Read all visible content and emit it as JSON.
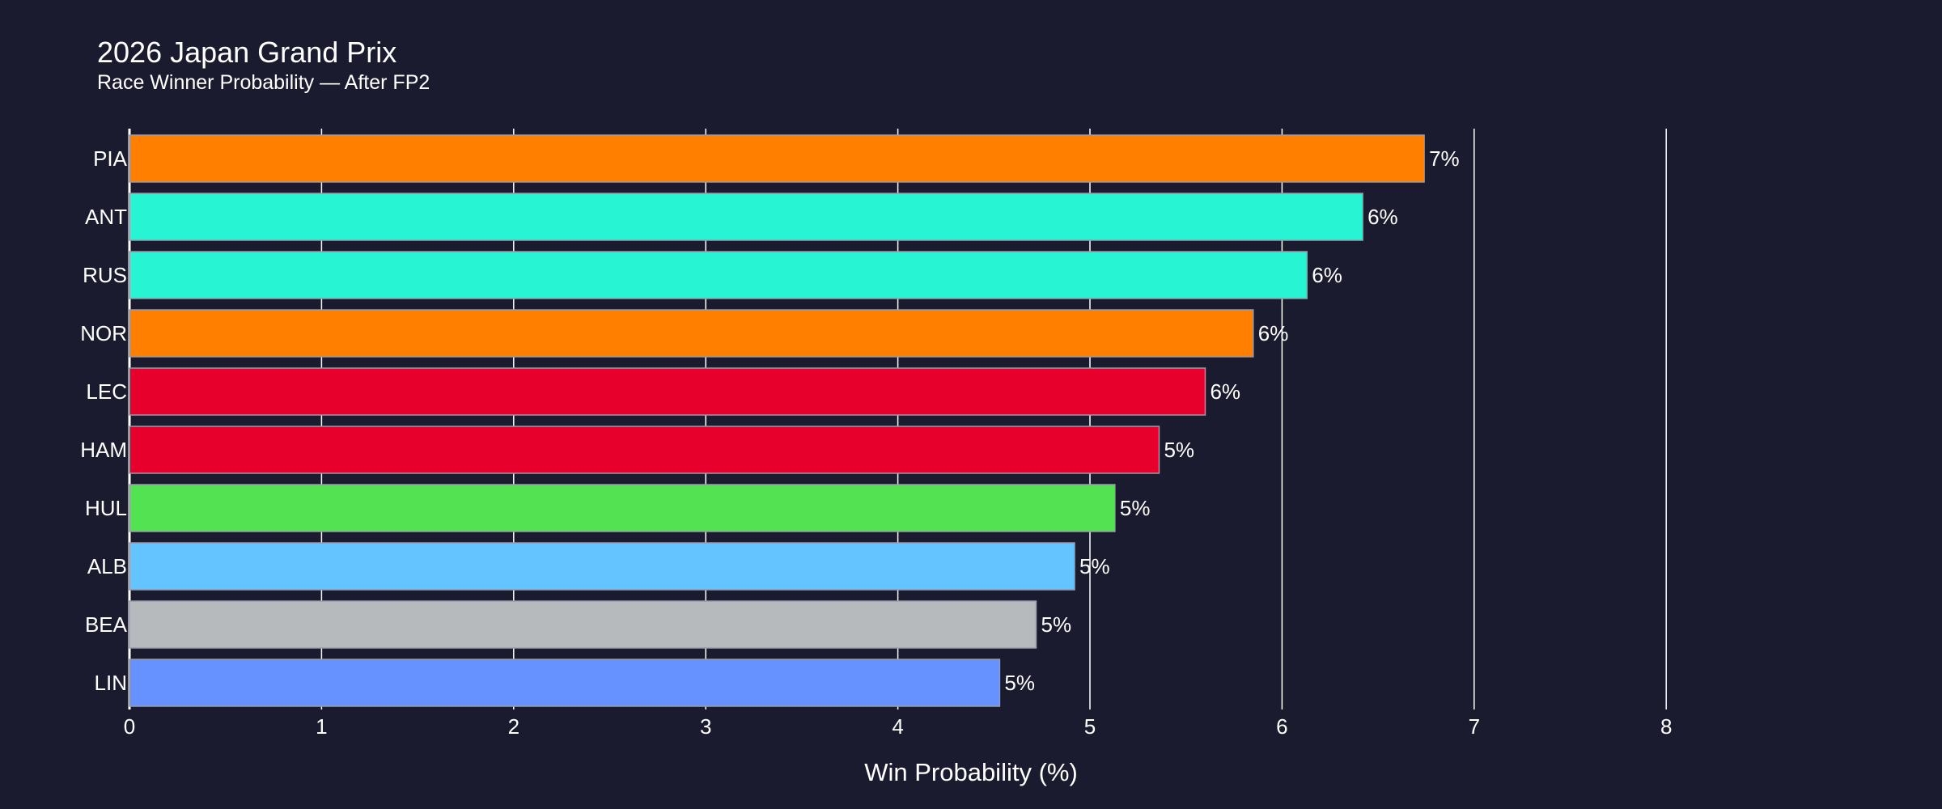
{
  "chart_data": {
    "type": "bar",
    "orientation": "horizontal",
    "title": "2026 Japan Grand Prix",
    "subtitle": "Race Winner Probability — After FP2",
    "xlabel": "Win Probability (%)",
    "ylabel": "",
    "xlim": [
      0,
      9
    ],
    "xticks": [
      0,
      1,
      2,
      3,
      4,
      5,
      6,
      7,
      8
    ],
    "grid": "vertical",
    "categories": [
      "PIA",
      "ANT",
      "RUS",
      "NOR",
      "LEC",
      "HAM",
      "HUL",
      "ALB",
      "BEA",
      "LIN"
    ],
    "values": [
      6.74,
      6.42,
      6.13,
      5.85,
      5.6,
      5.36,
      5.13,
      4.92,
      4.72,
      4.53
    ],
    "data_labels": [
      "7%",
      "6%",
      "6%",
      "6%",
      "6%",
      "5%",
      "5%",
      "5%",
      "5%",
      "5%"
    ],
    "colors": [
      "#FF8000",
      "#27F4D2",
      "#27F4D2",
      "#FF8000",
      "#E8002D",
      "#E8002D",
      "#52E252",
      "#64C4FF",
      "#B6BABD",
      "#6692FF"
    ],
    "background": "#1b1b2f"
  }
}
